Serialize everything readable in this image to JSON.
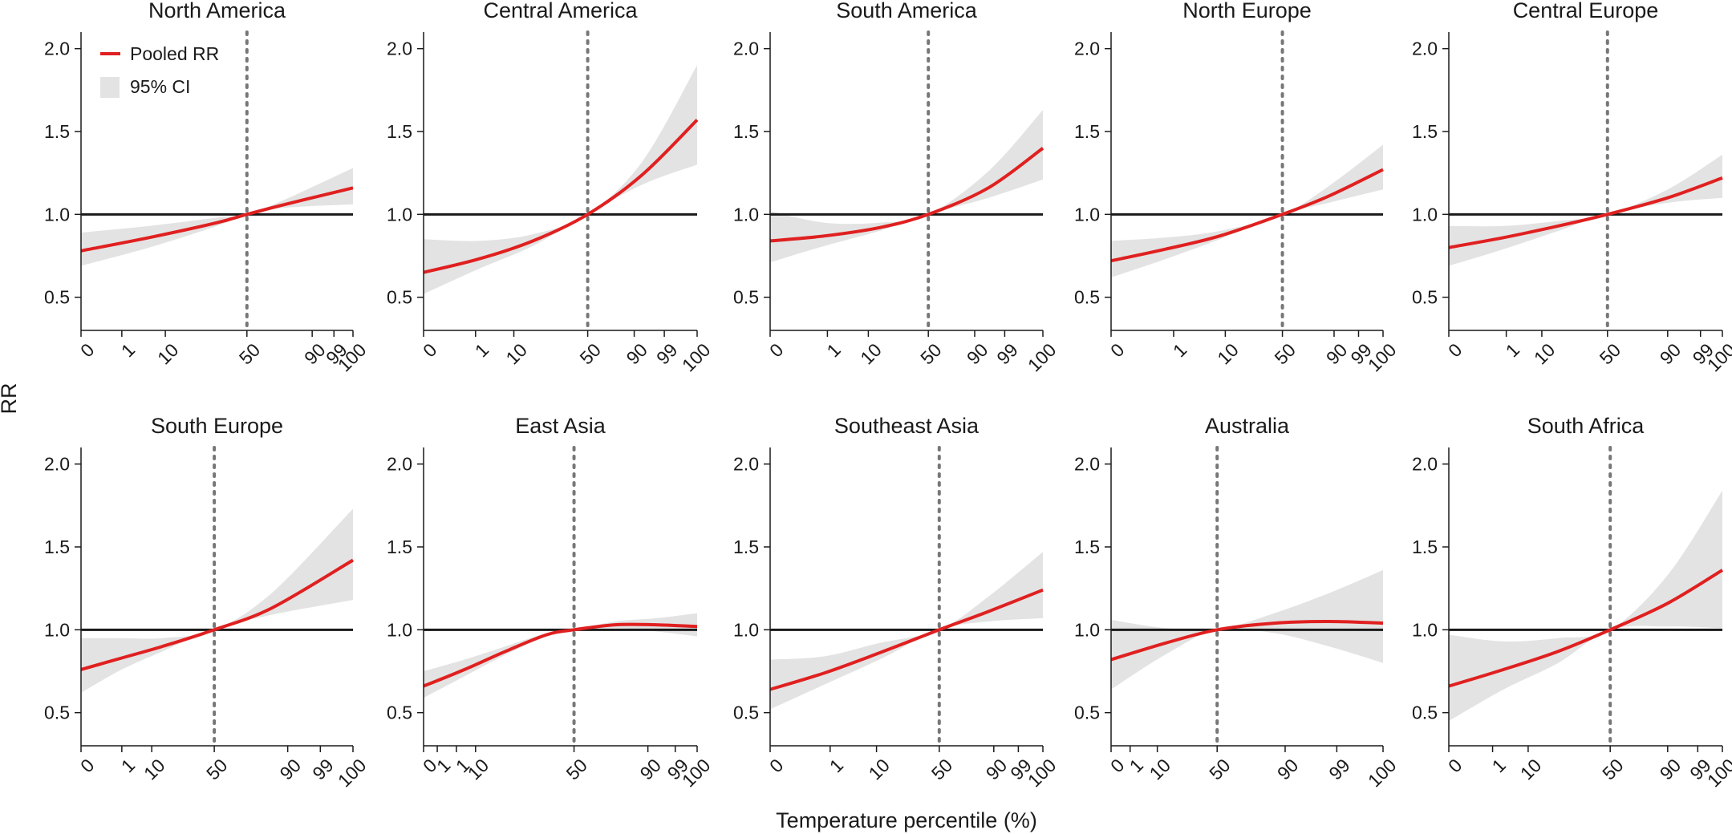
{
  "figure": {
    "ylabel": "RR",
    "xlabel": "Temperature percentile (%)",
    "legend": {
      "location": "top-left of first panel",
      "items": [
        {
          "label": "Pooled RR",
          "kind": "line",
          "color": "#e02020"
        },
        {
          "label": "95% CI",
          "kind": "area",
          "color": "#e3e3e3"
        }
      ]
    }
  },
  "colors": {
    "rr_line": "#e02020",
    "ci_band": "#e3e3e3",
    "reference_line": "#1a1a1a",
    "median_line": "#777777"
  },
  "chart_data": [
    {
      "type": "line",
      "title": "North America",
      "xlabel": "",
      "ylabel": "",
      "ylim": [
        0.3,
        2.1
      ],
      "yticks": [
        0.5,
        1.0,
        1.5,
        2.0
      ],
      "xticks": [
        "0",
        "1",
        "10",
        "50",
        "90",
        "99",
        "100"
      ],
      "tick_fractions": [
        0.0,
        0.15,
        0.31,
        0.61,
        0.85,
        0.93,
        1.0
      ],
      "reference_y": 1.0,
      "median_fraction": 0.61,
      "series": [
        {
          "name": "Pooled RR",
          "x": [
            0,
            0.25,
            0.5,
            0.61,
            0.75,
            1.0
          ],
          "y": [
            0.78,
            0.86,
            0.95,
            1.0,
            1.06,
            1.16
          ]
        },
        {
          "name": "95% CI",
          "x": [
            0,
            0.25,
            0.5,
            0.61,
            0.75,
            1.0
          ],
          "lower": [
            0.69,
            0.8,
            0.93,
            1.0,
            1.04,
            1.06
          ],
          "upper": [
            0.89,
            0.93,
            0.98,
            1.0,
            1.09,
            1.28
          ]
        }
      ]
    },
    {
      "type": "line",
      "title": "Central America",
      "xlabel": "",
      "ylabel": "",
      "ylim": [
        0.3,
        2.1
      ],
      "yticks": [
        0.5,
        1.0,
        1.5,
        2.0
      ],
      "xticks": [
        "0",
        "1",
        "10",
        "50",
        "90",
        "99",
        "100"
      ],
      "tick_fractions": [
        0.0,
        0.19,
        0.33,
        0.6,
        0.77,
        0.88,
        1.0
      ],
      "reference_y": 1.0,
      "median_fraction": 0.6,
      "series": [
        {
          "name": "Pooled RR",
          "x": [
            0,
            0.2,
            0.4,
            0.6,
            0.8,
            1.0
          ],
          "y": [
            0.65,
            0.73,
            0.84,
            1.0,
            1.24,
            1.57
          ]
        },
        {
          "name": "95% CI",
          "x": [
            0,
            0.2,
            0.4,
            0.6,
            0.8,
            1.0
          ],
          "lower": [
            0.52,
            0.67,
            0.81,
            1.0,
            1.18,
            1.3
          ],
          "upper": [
            0.85,
            0.84,
            0.88,
            1.0,
            1.32,
            1.9
          ]
        }
      ]
    },
    {
      "type": "line",
      "title": "South America",
      "xlabel": "",
      "ylabel": "",
      "ylim": [
        0.3,
        2.1
      ],
      "yticks": [
        0.5,
        1.0,
        1.5,
        2.0
      ],
      "xticks": [
        "0",
        "1",
        "10",
        "50",
        "90",
        "99",
        "100"
      ],
      "tick_fractions": [
        0.0,
        0.21,
        0.36,
        0.58,
        0.75,
        0.86,
        1.0
      ],
      "reference_y": 1.0,
      "median_fraction": 0.58,
      "series": [
        {
          "name": "Pooled RR",
          "x": [
            0,
            0.2,
            0.4,
            0.58,
            0.8,
            1.0
          ],
          "y": [
            0.84,
            0.87,
            0.92,
            1.0,
            1.16,
            1.4
          ]
        },
        {
          "name": "95% CI",
          "x": [
            0,
            0.2,
            0.4,
            0.58,
            0.8,
            1.0
          ],
          "lower": [
            0.71,
            0.81,
            0.9,
            1.0,
            1.1,
            1.21
          ],
          "upper": [
            1.02,
            0.95,
            0.95,
            1.0,
            1.26,
            1.63
          ]
        }
      ]
    },
    {
      "type": "line",
      "title": "North Europe",
      "xlabel": "",
      "ylabel": "",
      "ylim": [
        0.3,
        2.1
      ],
      "yticks": [
        0.5,
        1.0,
        1.5,
        2.0
      ],
      "xticks": [
        "0",
        "1",
        "10",
        "50",
        "90",
        "99",
        "100"
      ],
      "tick_fractions": [
        0.0,
        0.23,
        0.42,
        0.63,
        0.82,
        0.91,
        1.0
      ],
      "reference_y": 1.0,
      "median_fraction": 0.63,
      "series": [
        {
          "name": "Pooled RR",
          "x": [
            0,
            0.2,
            0.4,
            0.63,
            0.8,
            1.0
          ],
          "y": [
            0.72,
            0.79,
            0.87,
            1.0,
            1.11,
            1.27
          ]
        },
        {
          "name": "95% CI",
          "x": [
            0,
            0.2,
            0.4,
            0.63,
            0.8,
            1.0
          ],
          "lower": [
            0.62,
            0.73,
            0.85,
            1.0,
            1.07,
            1.15
          ],
          "upper": [
            0.84,
            0.86,
            0.9,
            1.0,
            1.17,
            1.42
          ]
        }
      ]
    },
    {
      "type": "line",
      "title": "Central Europe",
      "xlabel": "",
      "ylabel": "",
      "ylim": [
        0.3,
        2.1
      ],
      "yticks": [
        0.5,
        1.0,
        1.5,
        2.0
      ],
      "xticks": [
        "0",
        "1",
        "10",
        "50",
        "90",
        "99",
        "100"
      ],
      "tick_fractions": [
        0.0,
        0.21,
        0.34,
        0.58,
        0.8,
        0.92,
        1.0
      ],
      "reference_y": 1.0,
      "median_fraction": 0.58,
      "series": [
        {
          "name": "Pooled RR",
          "x": [
            0,
            0.2,
            0.4,
            0.58,
            0.8,
            1.0
          ],
          "y": [
            0.8,
            0.86,
            0.93,
            1.0,
            1.1,
            1.22
          ]
        },
        {
          "name": "95% CI",
          "x": [
            0,
            0.2,
            0.4,
            0.58,
            0.8,
            1.0
          ],
          "lower": [
            0.69,
            0.79,
            0.9,
            1.0,
            1.07,
            1.1
          ],
          "upper": [
            0.93,
            0.93,
            0.96,
            1.0,
            1.15,
            1.36
          ]
        }
      ]
    },
    {
      "type": "line",
      "title": "South Europe",
      "xlabel": "",
      "ylabel": "",
      "ylim": [
        0.3,
        2.1
      ],
      "yticks": [
        0.5,
        1.0,
        1.5,
        2.0
      ],
      "xticks": [
        "0",
        "1",
        "10",
        "50",
        "90",
        "99",
        "100"
      ],
      "tick_fractions": [
        0.0,
        0.15,
        0.26,
        0.49,
        0.76,
        0.88,
        1.0
      ],
      "reference_y": 1.0,
      "median_fraction": 0.49,
      "series": [
        {
          "name": "Pooled RR",
          "x": [
            0,
            0.15,
            0.3,
            0.49,
            0.7,
            1.0
          ],
          "y": [
            0.76,
            0.83,
            0.9,
            1.0,
            1.13,
            1.42
          ]
        },
        {
          "name": "95% CI",
          "x": [
            0,
            0.15,
            0.3,
            0.49,
            0.7,
            1.0
          ],
          "lower": [
            0.62,
            0.76,
            0.87,
            1.0,
            1.09,
            1.18
          ],
          "upper": [
            0.95,
            0.95,
            0.95,
            1.0,
            1.22,
            1.73
          ]
        }
      ]
    },
    {
      "type": "line",
      "title": "East Asia",
      "xlabel": "",
      "ylabel": "",
      "ylim": [
        0.3,
        2.1
      ],
      "yticks": [
        0.5,
        1.0,
        1.5,
        2.0
      ],
      "xticks": [
        "0",
        "1",
        "1",
        "10",
        "50",
        "90",
        "99",
        "100"
      ],
      "tick_fractions": [
        0.0,
        0.05,
        0.12,
        0.19,
        0.55,
        0.82,
        0.92,
        1.0
      ],
      "reference_y": 1.0,
      "median_fraction": 0.55,
      "series": [
        {
          "name": "Pooled RR",
          "x": [
            0,
            0.15,
            0.3,
            0.45,
            0.55,
            0.7,
            0.85,
            1.0
          ],
          "y": [
            0.66,
            0.76,
            0.87,
            0.97,
            1.0,
            1.03,
            1.03,
            1.02
          ]
        },
        {
          "name": "95% CI",
          "x": [
            0,
            0.15,
            0.3,
            0.45,
            0.55,
            0.7,
            0.85,
            1.0
          ],
          "lower": [
            0.59,
            0.72,
            0.85,
            0.96,
            1.0,
            1.01,
            0.99,
            0.96
          ],
          "upper": [
            0.75,
            0.82,
            0.9,
            0.98,
            1.0,
            1.05,
            1.07,
            1.1
          ]
        }
      ]
    },
    {
      "type": "line",
      "title": "Southeast Asia",
      "xlabel": "",
      "ylabel": "",
      "ylim": [
        0.3,
        2.1
      ],
      "yticks": [
        0.5,
        1.0,
        1.5,
        2.0
      ],
      "xticks": [
        "0",
        "1",
        "10",
        "50",
        "90",
        "99",
        "100"
      ],
      "tick_fractions": [
        0.0,
        0.22,
        0.39,
        0.62,
        0.82,
        0.91,
        1.0
      ],
      "reference_y": 1.0,
      "median_fraction": 0.62,
      "series": [
        {
          "name": "Pooled RR",
          "x": [
            0,
            0.2,
            0.4,
            0.62,
            0.8,
            1.0
          ],
          "y": [
            0.64,
            0.74,
            0.86,
            1.0,
            1.11,
            1.24
          ]
        },
        {
          "name": "95% CI",
          "x": [
            0,
            0.2,
            0.4,
            0.62,
            0.8,
            1.0
          ],
          "lower": [
            0.52,
            0.67,
            0.82,
            1.0,
            1.05,
            1.07
          ],
          "upper": [
            0.82,
            0.84,
            0.92,
            1.0,
            1.2,
            1.47
          ]
        }
      ]
    },
    {
      "type": "line",
      "title": "Australia",
      "xlabel": "",
      "ylabel": "",
      "ylim": [
        0.3,
        2.1
      ],
      "yticks": [
        0.5,
        1.0,
        1.5,
        2.0
      ],
      "xticks": [
        "0",
        "1",
        "10",
        "50",
        "90",
        "99",
        "100"
      ],
      "tick_fractions": [
        0.0,
        0.07,
        0.17,
        0.39,
        0.64,
        0.83,
        1.0
      ],
      "reference_y": 1.0,
      "median_fraction": 0.39,
      "series": [
        {
          "name": "Pooled RR",
          "x": [
            0,
            0.2,
            0.39,
            0.6,
            0.8,
            1.0
          ],
          "y": [
            0.82,
            0.92,
            1.0,
            1.04,
            1.05,
            1.04
          ]
        },
        {
          "name": "95% CI",
          "x": [
            0,
            0.2,
            0.39,
            0.6,
            0.8,
            1.0
          ],
          "lower": [
            0.64,
            0.85,
            1.0,
            0.98,
            0.9,
            0.8
          ],
          "upper": [
            1.06,
            1.01,
            1.0,
            1.1,
            1.22,
            1.36
          ]
        }
      ]
    },
    {
      "type": "line",
      "title": "South Africa",
      "xlabel": "",
      "ylabel": "",
      "ylim": [
        0.3,
        2.1
      ],
      "yticks": [
        0.5,
        1.0,
        1.5,
        2.0
      ],
      "xticks": [
        "0",
        "1",
        "10",
        "50",
        "90",
        "99",
        "100"
      ],
      "tick_fractions": [
        0.0,
        0.16,
        0.29,
        0.59,
        0.8,
        0.91,
        1.0
      ],
      "reference_y": 1.0,
      "median_fraction": 0.59,
      "series": [
        {
          "name": "Pooled RR",
          "x": [
            0,
            0.2,
            0.4,
            0.59,
            0.8,
            1.0
          ],
          "y": [
            0.66,
            0.76,
            0.87,
            1.0,
            1.16,
            1.36
          ]
        },
        {
          "name": "95% CI",
          "x": [
            0,
            0.2,
            0.4,
            0.59,
            0.8,
            1.0
          ],
          "lower": [
            0.45,
            0.64,
            0.8,
            1.0,
            1.02,
            1.01
          ],
          "upper": [
            0.97,
            0.93,
            0.95,
            1.0,
            1.33,
            1.84
          ]
        }
      ]
    }
  ]
}
